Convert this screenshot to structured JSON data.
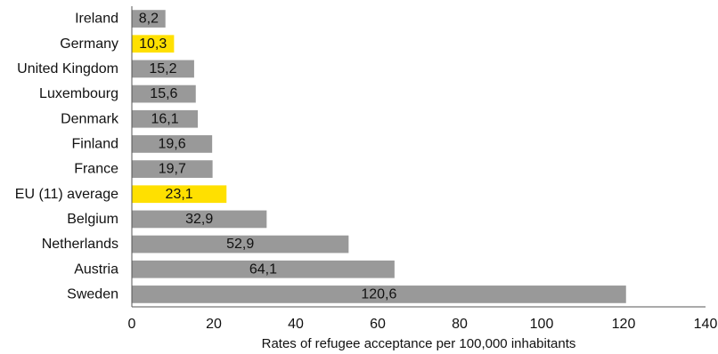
{
  "chart_data": {
    "type": "bar",
    "orientation": "horizontal",
    "categories": [
      "Ireland",
      "Germany",
      "United Kingdom",
      "Luxembourg",
      "Denmark",
      "Finland",
      "France",
      "EU (11) average",
      "Belgium",
      "Netherlands",
      "Austria",
      "Sweden"
    ],
    "values": [
      8.2,
      10.3,
      15.2,
      15.6,
      16.1,
      19.6,
      19.7,
      23.1,
      32.9,
      52.9,
      64.1,
      120.6
    ],
    "value_labels": [
      "8,2",
      "10,3",
      "15,2",
      "15,6",
      "16,1",
      "19,6",
      "19,7",
      "23,1",
      "32,9",
      "52,9",
      "64,1",
      "120,6"
    ],
    "highlighted": [
      "Germany",
      "EU (11) average"
    ],
    "colors": {
      "default": "#999999",
      "highlight": "#ffe000"
    },
    "title": "",
    "xlabel": "Rates of refugee acceptance per  100,000 inhabitants",
    "ylabel": "",
    "xlim": [
      0,
      140
    ],
    "xticks": [
      0,
      20,
      40,
      60,
      80,
      100,
      120,
      140
    ],
    "grid": false,
    "legend": "none"
  }
}
